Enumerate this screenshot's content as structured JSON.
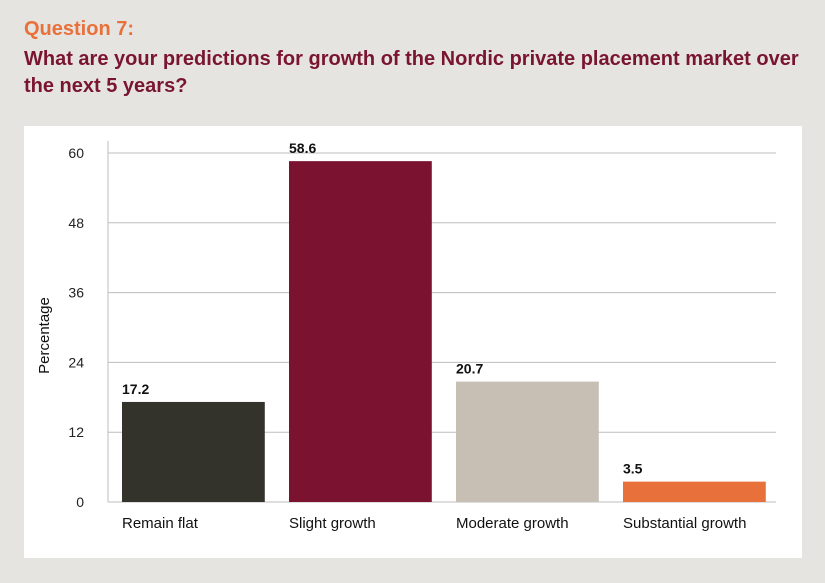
{
  "header": {
    "question_label": "Question 7:",
    "question_text": "What are your predictions for growth of the Nordic private placement market over the next 5 years?"
  },
  "colors": {
    "page_bg": "#e6e4e1",
    "panel_bg": "#ffffff",
    "question_label": "#e8713b",
    "question_text": "#7a1530",
    "grid": "#bdbdbd"
  },
  "chart_data": {
    "type": "bar",
    "title": "",
    "xlabel": "",
    "ylabel": "Percentage",
    "ylim": [
      0,
      60
    ],
    "yticks": [
      0,
      12,
      24,
      36,
      48,
      60
    ],
    "grid": true,
    "legend": "none",
    "categories": [
      "Remain flat",
      "Slight growth",
      "Moderate growth",
      "Substantial growth"
    ],
    "values": [
      17.2,
      58.6,
      20.7,
      3.5
    ],
    "value_labels": [
      "17.2",
      "58.6",
      "20.7",
      "3.5"
    ],
    "bar_colors": [
      "#33332b",
      "#7a1230",
      "#c7bfb4",
      "#e8713b"
    ]
  }
}
